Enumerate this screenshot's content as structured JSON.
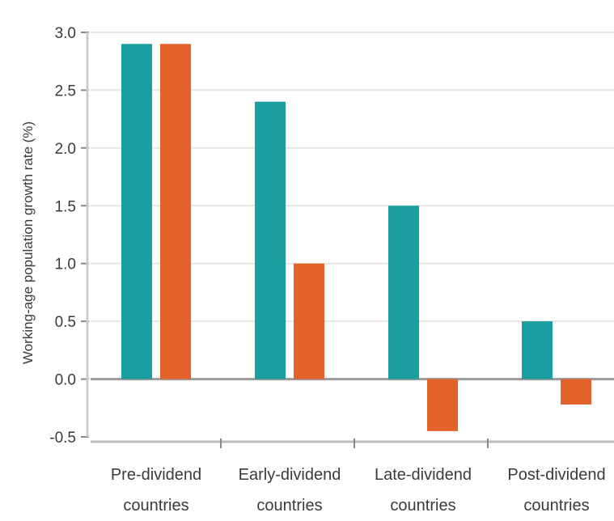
{
  "chart_data": {
    "type": "bar",
    "title": "",
    "ylabel": "Working-age population growth rate (%)",
    "xlabel": "",
    "categories": [
      [
        "Pre-dividend",
        "countries"
      ],
      [
        "Early-dividend",
        "countries"
      ],
      [
        "Late-dividend",
        "countries"
      ],
      [
        "Post-dividend",
        "countries"
      ]
    ],
    "series": [
      {
        "color": "#1a9ea0",
        "values": [
          2.9,
          2.4,
          1.5,
          0.5
        ]
      },
      {
        "color": "#e2622a",
        "values": [
          2.9,
          1.0,
          -0.45,
          -0.22
        ]
      }
    ],
    "yticks": [
      "3.0",
      "2.5",
      "2.0",
      "1.5",
      "1.0",
      "0.5",
      "0.0",
      "-0.5"
    ],
    "ylim": [
      -0.5,
      3.0
    ],
    "grid": true,
    "legend": "none"
  }
}
